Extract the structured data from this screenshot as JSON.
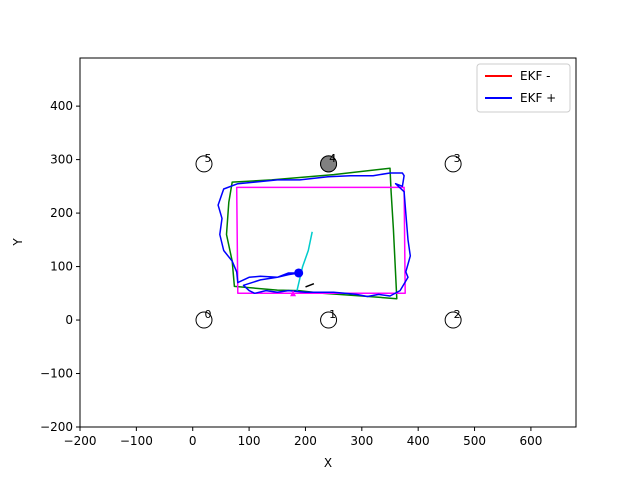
{
  "chart_data": {
    "type": "line",
    "title": "",
    "xlabel": "X",
    "ylabel": "Y",
    "xlim": [
      -200,
      680
    ],
    "ylim": [
      -200,
      490
    ],
    "xticks": [
      -200,
      -100,
      0,
      100,
      200,
      300,
      400,
      500,
      600
    ],
    "yticks": [
      -200,
      -100,
      0,
      100,
      200,
      300,
      400
    ],
    "grid": false,
    "legend_placement": "top-right",
    "legend": [
      {
        "label": "EKF -",
        "color": "#ff0000"
      },
      {
        "label": "EKF +",
        "color": "#0000ff"
      }
    ],
    "landmarks": [
      {
        "id": "0",
        "x": 20,
        "y": 0
      },
      {
        "id": "1",
        "x": 241,
        "y": 0
      },
      {
        "id": "2",
        "x": 462,
        "y": 0
      },
      {
        "id": "3",
        "x": 462,
        "y": 292
      },
      {
        "id": "4",
        "x": 241,
        "y": 292
      },
      {
        "id": "5",
        "x": 20,
        "y": 292
      }
    ],
    "series": [
      {
        "color": "#008000",
        "points": [
          [
            188,
            55
          ],
          [
            150,
            56
          ],
          [
            74,
            63
          ],
          [
            70,
            110
          ],
          [
            60,
            160
          ],
          [
            64,
            220
          ],
          [
            70,
            258
          ],
          [
            140,
            262
          ],
          [
            250,
            272
          ],
          [
            350,
            284
          ],
          [
            352,
            240
          ],
          [
            356,
            170
          ],
          [
            362,
            40
          ],
          [
            300,
            45
          ],
          [
            230,
            50
          ],
          [
            188,
            55
          ]
        ]
      },
      {
        "color": "#ff00ff",
        "points": [
          [
            185,
            50
          ],
          [
            80,
            50
          ],
          [
            78,
            248
          ],
          [
            375,
            248
          ],
          [
            377,
            50
          ],
          [
            185,
            50
          ]
        ]
      },
      {
        "color": "#0000ff",
        "points": [
          [
            188,
            88
          ],
          [
            170,
            88
          ],
          [
            150,
            80
          ],
          [
            120,
            82
          ],
          [
            100,
            80
          ],
          [
            80,
            70
          ],
          [
            78,
            90
          ],
          [
            70,
            110
          ],
          [
            55,
            130
          ],
          [
            48,
            160
          ],
          [
            52,
            190
          ],
          [
            45,
            215
          ],
          [
            50,
            230
          ],
          [
            55,
            245
          ],
          [
            80,
            255
          ],
          [
            110,
            258
          ],
          [
            150,
            262
          ],
          [
            190,
            262
          ],
          [
            240,
            268
          ],
          [
            280,
            270
          ],
          [
            320,
            270
          ],
          [
            350,
            275
          ],
          [
            372,
            275
          ],
          [
            375,
            270
          ],
          [
            372,
            250
          ],
          [
            360,
            255
          ],
          [
            375,
            240
          ],
          [
            378,
            200
          ],
          [
            382,
            150
          ],
          [
            386,
            120
          ],
          [
            378,
            90
          ],
          [
            382,
            80
          ],
          [
            368,
            55
          ],
          [
            350,
            45
          ],
          [
            330,
            48
          ],
          [
            310,
            44
          ],
          [
            290,
            48
          ],
          [
            270,
            50
          ],
          [
            250,
            52
          ],
          [
            230,
            52
          ],
          [
            210,
            52
          ],
          [
            200,
            52
          ],
          [
            170,
            55
          ],
          [
            150,
            52
          ],
          [
            130,
            55
          ],
          [
            110,
            50
          ],
          [
            100,
            55
          ],
          [
            90,
            65
          ],
          [
            120,
            75
          ],
          [
            150,
            80
          ],
          [
            170,
            85
          ],
          [
            188,
            88
          ]
        ]
      },
      {
        "color": "#00cccc",
        "points": [
          [
            185,
            55
          ],
          [
            195,
            100
          ],
          [
            205,
            130
          ],
          [
            212,
            165
          ]
        ]
      },
      {
        "color": "#000000",
        "points": [
          [
            200,
            62
          ],
          [
            215,
            68
          ]
        ]
      }
    ],
    "robot": {
      "x": 188,
      "y": 88,
      "color": "#0000ff"
    },
    "target": {
      "x": 241,
      "y": 292,
      "color": "#808080"
    },
    "start_marker": {
      "x": 178,
      "y": 50,
      "color": "#ff00ff"
    }
  }
}
